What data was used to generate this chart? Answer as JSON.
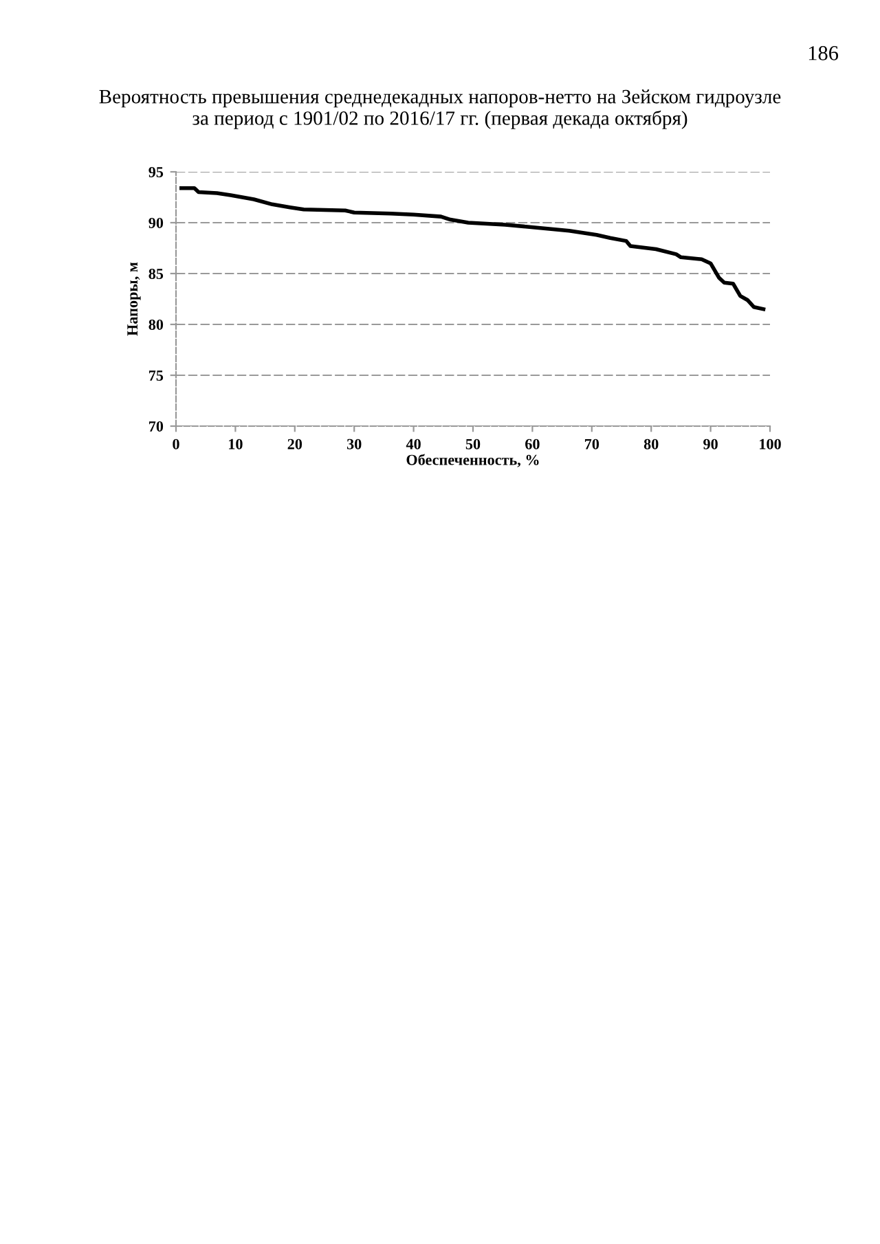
{
  "chart_data": {
    "type": "line",
    "title": "Вероятность превышения среднедекадных напоров-нетто на Зейском гидроузле\nза период с 1901/02 по 2016/17 гг. (первая декада октября)",
    "xlabel": "Обеспеченность, %",
    "ylabel": "Напоры, м",
    "annotations": [
      "186"
    ],
    "series": [
      {
        "color": "#000000",
        "x": [
          0.9,
          3.1,
          3.8,
          6.9,
          9.2,
          13.1,
          16.2,
          19.2,
          21.5,
          28.5,
          30,
          36.2,
          40,
          44.6,
          46.2,
          49.2,
          55.4,
          59.2,
          66.2,
          70.8,
          73.1,
          75.8,
          76.5,
          80.8,
          84.2,
          85,
          88.5,
          90,
          91.4,
          92.3,
          93.8,
          95,
          96.2,
          97.3,
          98.9
        ],
        "values": [
          93.4,
          93.4,
          93.0,
          92.9,
          92.7,
          92.3,
          91.8,
          91.5,
          91.3,
          91.2,
          91.0,
          90.9,
          90.8,
          90.6,
          90.3,
          90.0,
          89.8,
          89.6,
          89.2,
          88.8,
          88.5,
          88.2,
          87.7,
          87.4,
          86.9,
          86.6,
          86.4,
          86.0,
          84.6,
          84.1,
          84.0,
          82.8,
          82.4,
          81.7,
          81.5
        ]
      }
    ],
    "xlim": [
      0,
      100
    ],
    "xticks": [
      0,
      10,
      20,
      30,
      40,
      50,
      60,
      70,
      80,
      90,
      100
    ],
    "ylim": [
      70,
      95
    ],
    "yticks": [
      70,
      75,
      80,
      85,
      90,
      95
    ],
    "grid": "y",
    "line_style": "solid",
    "marker": "none"
  }
}
